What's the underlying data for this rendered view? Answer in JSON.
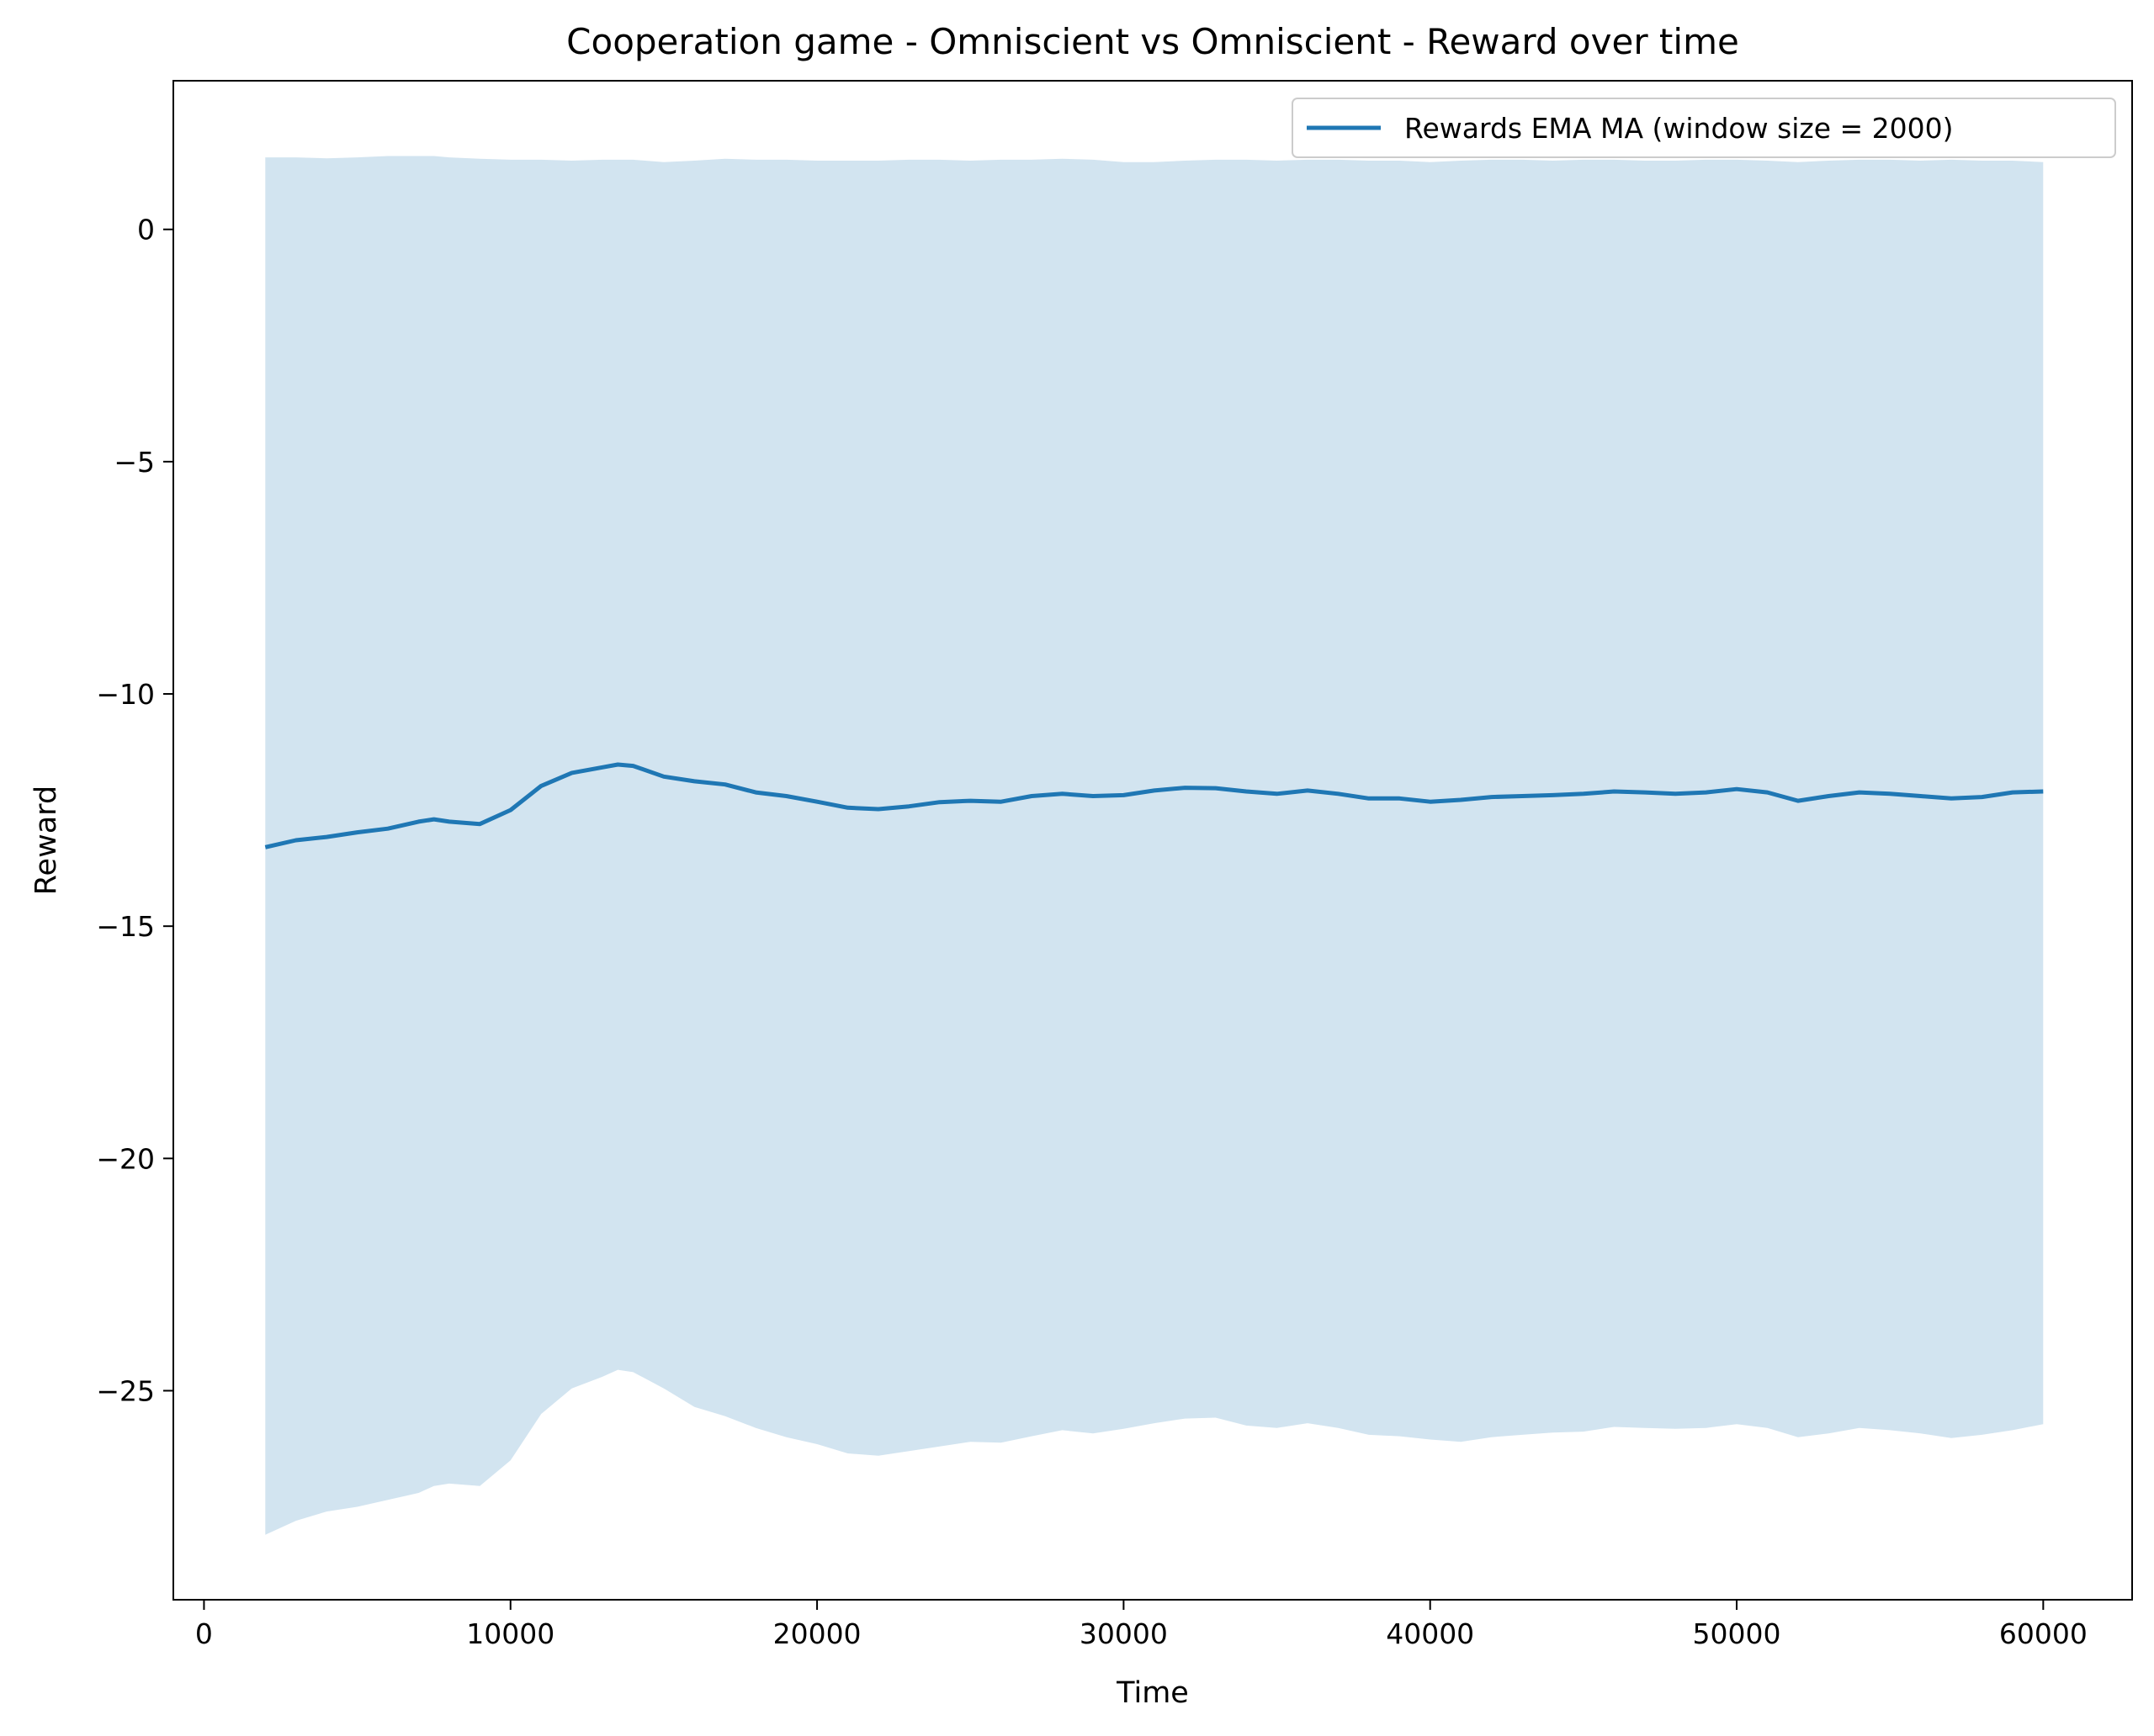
{
  "chart_data": {
    "type": "area",
    "title": "Cooperation game - Omniscient vs Omniscient - Reward over time",
    "xlabel": "Time",
    "ylabel": "Reward",
    "xlim": [
      -1000,
      62900
    ],
    "ylim": [
      -29.5,
      3.2
    ],
    "xticks": [
      0,
      10000,
      20000,
      30000,
      40000,
      50000,
      60000
    ],
    "yticks": [
      0,
      -5,
      -10,
      -15,
      -20,
      -25
    ],
    "grid": false,
    "legend_position": "top-right",
    "colors": {
      "line": "#1f77b4",
      "band": "#1f77b4"
    },
    "series": [
      {
        "name": "Rewards EMA MA (window size = 2000)",
        "x": [
          2000,
          3000,
          4000,
          5000,
          6000,
          7000,
          7500,
          8000,
          9000,
          10000,
          11000,
          12000,
          13000,
          13500,
          14000,
          15000,
          16000,
          17000,
          18000,
          19000,
          20000,
          21000,
          22000,
          23000,
          24000,
          25000,
          26000,
          27000,
          28000,
          29000,
          30000,
          31000,
          32000,
          33000,
          34000,
          35000,
          36000,
          37000,
          38000,
          39000,
          40000,
          41000,
          42000,
          43000,
          44000,
          45000,
          46000,
          47000,
          48000,
          49000,
          50000,
          51000,
          52000,
          53000,
          54000,
          55000,
          56000,
          57000,
          58000,
          59000,
          60000
        ],
        "values": [
          -13.3,
          -13.15,
          -13.08,
          -12.98,
          -12.9,
          -12.75,
          -12.7,
          -12.75,
          -12.8,
          -12.5,
          -11.98,
          -11.7,
          -11.58,
          -11.52,
          -11.55,
          -11.78,
          -11.88,
          -11.95,
          -12.12,
          -12.2,
          -12.32,
          -12.45,
          -12.48,
          -12.42,
          -12.33,
          -12.3,
          -12.32,
          -12.2,
          -12.15,
          -12.2,
          -12.18,
          -12.08,
          -12.02,
          -12.03,
          -12.1,
          -12.15,
          -12.08,
          -12.15,
          -12.25,
          -12.25,
          -12.32,
          -12.28,
          -12.22,
          -12.2,
          -12.18,
          -12.15,
          -12.1,
          -12.12,
          -12.15,
          -12.12,
          -12.05,
          -12.12,
          -12.3,
          -12.2,
          -12.12,
          -12.15,
          -12.2,
          -12.25,
          -12.22,
          -12.12,
          -12.1
        ],
        "upper": [
          1.55,
          1.55,
          1.53,
          1.55,
          1.58,
          1.58,
          1.58,
          1.55,
          1.52,
          1.5,
          1.5,
          1.48,
          1.5,
          1.5,
          1.5,
          1.45,
          1.48,
          1.52,
          1.5,
          1.5,
          1.48,
          1.48,
          1.48,
          1.5,
          1.5,
          1.48,
          1.5,
          1.5,
          1.52,
          1.5,
          1.45,
          1.45,
          1.48,
          1.5,
          1.5,
          1.48,
          1.5,
          1.5,
          1.48,
          1.48,
          1.45,
          1.48,
          1.5,
          1.5,
          1.48,
          1.5,
          1.5,
          1.48,
          1.48,
          1.5,
          1.5,
          1.48,
          1.45,
          1.48,
          1.5,
          1.5,
          1.48,
          1.5,
          1.48,
          1.48,
          1.45
        ],
        "lower": [
          -28.1,
          -27.8,
          -27.6,
          -27.5,
          -27.35,
          -27.2,
          -27.05,
          -27.0,
          -27.05,
          -26.5,
          -25.5,
          -24.95,
          -24.7,
          -24.55,
          -24.6,
          -24.95,
          -25.35,
          -25.55,
          -25.8,
          -26.0,
          -26.15,
          -26.35,
          -26.4,
          -26.3,
          -26.2,
          -26.1,
          -26.12,
          -25.98,
          -25.85,
          -25.92,
          -25.82,
          -25.7,
          -25.6,
          -25.58,
          -25.75,
          -25.8,
          -25.7,
          -25.8,
          -25.95,
          -25.98,
          -26.05,
          -26.1,
          -26.0,
          -25.95,
          -25.9,
          -25.88,
          -25.78,
          -25.8,
          -25.82,
          -25.8,
          -25.72,
          -25.8,
          -26.0,
          -25.92,
          -25.8,
          -25.85,
          -25.92,
          -26.02,
          -25.95,
          -25.85,
          -25.72
        ]
      }
    ]
  }
}
